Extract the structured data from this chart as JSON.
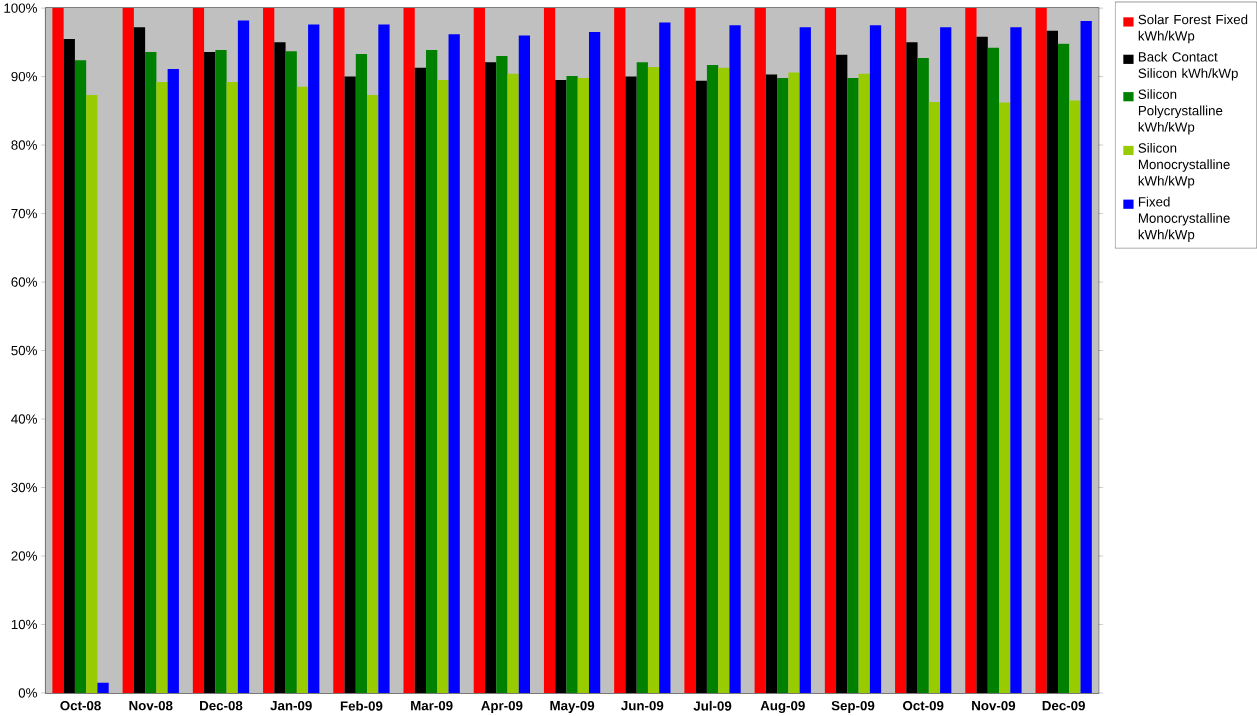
{
  "chart_data": {
    "type": "bar",
    "categories": [
      "Oct-08",
      "Nov-08",
      "Dec-08",
      "Jan-09",
      "Feb-09",
      "Mar-09",
      "Apr-09",
      "May-09",
      "Jun-09",
      "Jul-09",
      "Aug-09",
      "Sep-09",
      "Oct-09",
      "Nov-09",
      "Dec-09"
    ],
    "series": [
      {
        "name": "Solar Forest Fixed kWh/kWp",
        "color": "#ff0000",
        "values": [
          100,
          100,
          100,
          100,
          100,
          100,
          100,
          100,
          100,
          100,
          100,
          100,
          100,
          100,
          100
        ]
      },
      {
        "name": "Back Contact Silicon kWh/kWp",
        "color": "#000000",
        "values": [
          95.5,
          97.2,
          93.6,
          95.0,
          90.0,
          91.3,
          92.1,
          89.5,
          90.0,
          89.4,
          90.3,
          93.2,
          95.0,
          95.8,
          96.7
        ]
      },
      {
        "name": "Silicon Polycrystalline kWh/kWp",
        "color": "#008000",
        "values": [
          92.4,
          93.6,
          93.9,
          93.7,
          93.3,
          93.9,
          93.0,
          90.1,
          92.1,
          91.7,
          89.8,
          89.8,
          92.7,
          94.2,
          94.8
        ]
      },
      {
        "name": "Silicon Monocrystalline kWh/kWp",
        "color": "#99cc00",
        "values": [
          87.3,
          89.2,
          89.2,
          88.5,
          87.3,
          89.5,
          90.4,
          89.8,
          91.4,
          91.3,
          90.6,
          90.4,
          86.3,
          86.2,
          86.5
        ]
      },
      {
        "name": "Fixed Monocrystalline kWh/kWp",
        "color": "#0000ff",
        "values": [
          1.5,
          91.1,
          98.2,
          97.6,
          97.6,
          96.2,
          96.0,
          96.5,
          97.9,
          97.5,
          97.2,
          97.5,
          97.2,
          97.2,
          98.1
        ]
      }
    ],
    "ylim": [
      0,
      100
    ],
    "yticks": [
      {
        "value": 0,
        "label": "0%"
      },
      {
        "value": 10,
        "label": "10%"
      },
      {
        "value": 20,
        "label": "20%"
      },
      {
        "value": 30,
        "label": "30%"
      },
      {
        "value": 40,
        "label": "40%"
      },
      {
        "value": 50,
        "label": "50%"
      },
      {
        "value": 60,
        "label": "60%"
      },
      {
        "value": 70,
        "label": "70%"
      },
      {
        "value": 80,
        "label": "80%"
      },
      {
        "value": 90,
        "label": "90%"
      },
      {
        "value": 100,
        "label": "100%"
      }
    ],
    "grid": "y",
    "legend": "top right"
  }
}
